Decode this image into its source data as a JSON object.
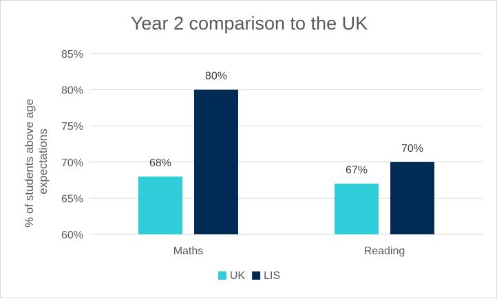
{
  "chart_data": {
    "type": "bar",
    "title": "Year 2 comparison to the UK",
    "xlabel": "",
    "ylabel": "% of students above age expectations",
    "ylabel_lines": [
      "% of students above age",
      "expectations"
    ],
    "categories": [
      "Maths",
      "Reading"
    ],
    "series": [
      {
        "name": "UK",
        "values": [
          68,
          67
        ],
        "color": "#2ecdd9"
      },
      {
        "name": "LIS",
        "values": [
          80,
          70
        ],
        "color": "#002b55"
      }
    ],
    "data_labels": [
      [
        "68%",
        "67%"
      ],
      [
        "80%",
        "70%"
      ]
    ],
    "ylim": [
      60,
      85
    ],
    "yticks": [
      60,
      65,
      70,
      75,
      80,
      85
    ],
    "ytick_labels": [
      "60%",
      "65%",
      "70%",
      "75%",
      "80%",
      "85%"
    ],
    "grid": true,
    "legend_position": "bottom",
    "colors": {
      "gridline": "#d9d9d9",
      "text": "#595959",
      "title": "#595959",
      "data_label": "#404040"
    }
  }
}
